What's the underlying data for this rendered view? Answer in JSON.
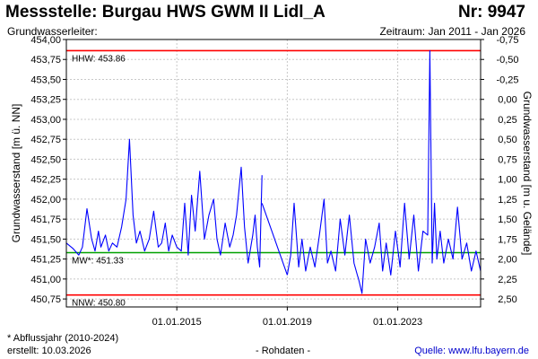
{
  "header": {
    "title": "Messstelle: Burgau HWS GWM II Lidl_A",
    "number": "Nr: 9947",
    "subtitle": "Grundwasserleiter:",
    "period": "Zeitraum: Jan 2011 - Jan 2026"
  },
  "footer": {
    "footnote": "* Abflussjahr (2010-2024)",
    "created": "erstellt:  10.03.2026",
    "raw": "- Rohdaten -",
    "source": "Quelle:  www.lfu.bayern.de"
  },
  "colors": {
    "series": "#0000ff",
    "extreme": "#ff0000",
    "mean": "#00a000",
    "grid": "#c8c8c8"
  },
  "chart_data": {
    "type": "line",
    "ylabel": "Grundwasserstand [m ü. NN]",
    "ylabel_right": "Grundwasserstand [m u. Gelände]",
    "ylim": [
      450.65,
      454.0
    ],
    "xlim": [
      "2011-01-01",
      "2026-01-01"
    ],
    "yticks": [
      "454,00",
      "453,75",
      "453,50",
      "453,25",
      "453,00",
      "452,75",
      "452,50",
      "452,25",
      "452,00",
      "451,75",
      "451,50",
      "451,25",
      "451,00",
      "450,75"
    ],
    "yticks_right": [
      "-0,75",
      "-0,50",
      "-0,25",
      "0,00",
      "0,25",
      "0,50",
      "0,75",
      "1,00",
      "1,25",
      "1,50",
      "1,75",
      "2,00",
      "2,25",
      "2,50"
    ],
    "xticks": [
      "01.01.2015",
      "01.01.2019",
      "01.01.2023"
    ],
    "grid": true,
    "reference_lines": [
      {
        "label": "HHW: 453.86",
        "value": 453.86,
        "kind": "extreme"
      },
      {
        "label": "MW*: 451.33",
        "value": 451.33,
        "kind": "mean"
      },
      {
        "label": "NNW: 450.80",
        "value": 450.8,
        "kind": "extreme"
      }
    ],
    "segments": [
      {
        "x": [
          "2011-01-01",
          "2011-04-01",
          "2011-06-15",
          "2011-08-01",
          "2011-10-01",
          "2011-12-01",
          "2012-01-15",
          "2012-03-01",
          "2012-04-01",
          "2012-06-01",
          "2012-07-15",
          "2012-09-01",
          "2012-11-01",
          "2013-01-01",
          "2013-03-01",
          "2013-04-15",
          "2013-06-01",
          "2013-07-15",
          "2013-09-01",
          "2013-11-01",
          "2014-01-01",
          "2014-03-01",
          "2014-05-01",
          "2014-06-15",
          "2014-08-01",
          "2014-09-15",
          "2014-11-01",
          "2015-01-01",
          "2015-03-01",
          "2015-04-15",
          "2015-06-01",
          "2015-07-15",
          "2015-09-01",
          "2015-11-01",
          "2016-01-01",
          "2016-03-01",
          "2016-05-01",
          "2016-06-15",
          "2016-08-01",
          "2016-10-01",
          "2016-12-01",
          "2017-01-15",
          "2017-03-01",
          "2017-05-01",
          "2017-06-15",
          "2017-08-01",
          "2017-10-01",
          "2017-11-01",
          "2017-12-01",
          "2018-01-01",
          "2018-02-01"
        ],
        "y": [
          451.45,
          451.38,
          451.3,
          451.4,
          451.88,
          451.5,
          451.35,
          451.6,
          451.4,
          451.55,
          451.35,
          451.45,
          451.4,
          451.65,
          452.0,
          452.75,
          451.8,
          451.45,
          451.6,
          451.35,
          451.5,
          451.85,
          451.4,
          451.45,
          451.7,
          451.35,
          451.55,
          451.4,
          451.35,
          451.95,
          451.3,
          452.05,
          451.6,
          452.35,
          451.5,
          451.8,
          452.0,
          451.5,
          451.3,
          451.7,
          451.4,
          451.55,
          451.8,
          452.4,
          451.65,
          451.2,
          451.55,
          451.8,
          451.4,
          451.15,
          452.3
        ]
      },
      {
        "x": [
          "2018-02-01",
          "2019-01-01"
        ],
        "y": [
          451.95,
          451.05
        ]
      },
      {
        "x": [
          "2019-01-01",
          "2019-02-15",
          "2019-04-01",
          "2019-06-01",
          "2019-07-15",
          "2019-09-01",
          "2019-11-01",
          "2020-01-01",
          "2020-03-01",
          "2020-05-01",
          "2020-06-15",
          "2020-08-01",
          "2020-10-01",
          "2020-12-01",
          "2021-02-01",
          "2021-04-01",
          "2021-06-01",
          "2021-07-15",
          "2021-08-01",
          "2021-09-15",
          "2021-11-01",
          "2022-01-01",
          "2022-03-01",
          "2022-05-01",
          "2022-06-15",
          "2022-08-01",
          "2022-10-01",
          "2022-12-01",
          "2023-02-01",
          "2023-04-01",
          "2023-06-01",
          "2023-08-01",
          "2023-10-01",
          "2023-12-01",
          "2024-02-01",
          "2024-03-01",
          "2024-04-01",
          "2024-05-01",
          "2024-06-01",
          "2024-07-15",
          "2024-09-01",
          "2024-11-01",
          "2025-01-01",
          "2025-03-01",
          "2025-05-01",
          "2025-07-01",
          "2025-09-01",
          "2025-11-01",
          "2026-01-01"
        ],
        "y": [
          451.05,
          451.3,
          451.95,
          451.15,
          451.5,
          451.1,
          451.4,
          451.15,
          451.55,
          452.0,
          451.2,
          451.35,
          451.1,
          451.75,
          451.3,
          451.8,
          451.2,
          451.05,
          451.0,
          450.82,
          451.5,
          451.2,
          451.4,
          451.7,
          451.1,
          451.45,
          451.05,
          451.6,
          451.15,
          451.95,
          451.25,
          451.8,
          451.1,
          451.6,
          451.55,
          453.86,
          451.2,
          451.95,
          451.25,
          451.6,
          451.2,
          451.5,
          451.25,
          451.9,
          451.25,
          451.45,
          451.1,
          451.35,
          451.1
        ]
      }
    ]
  }
}
